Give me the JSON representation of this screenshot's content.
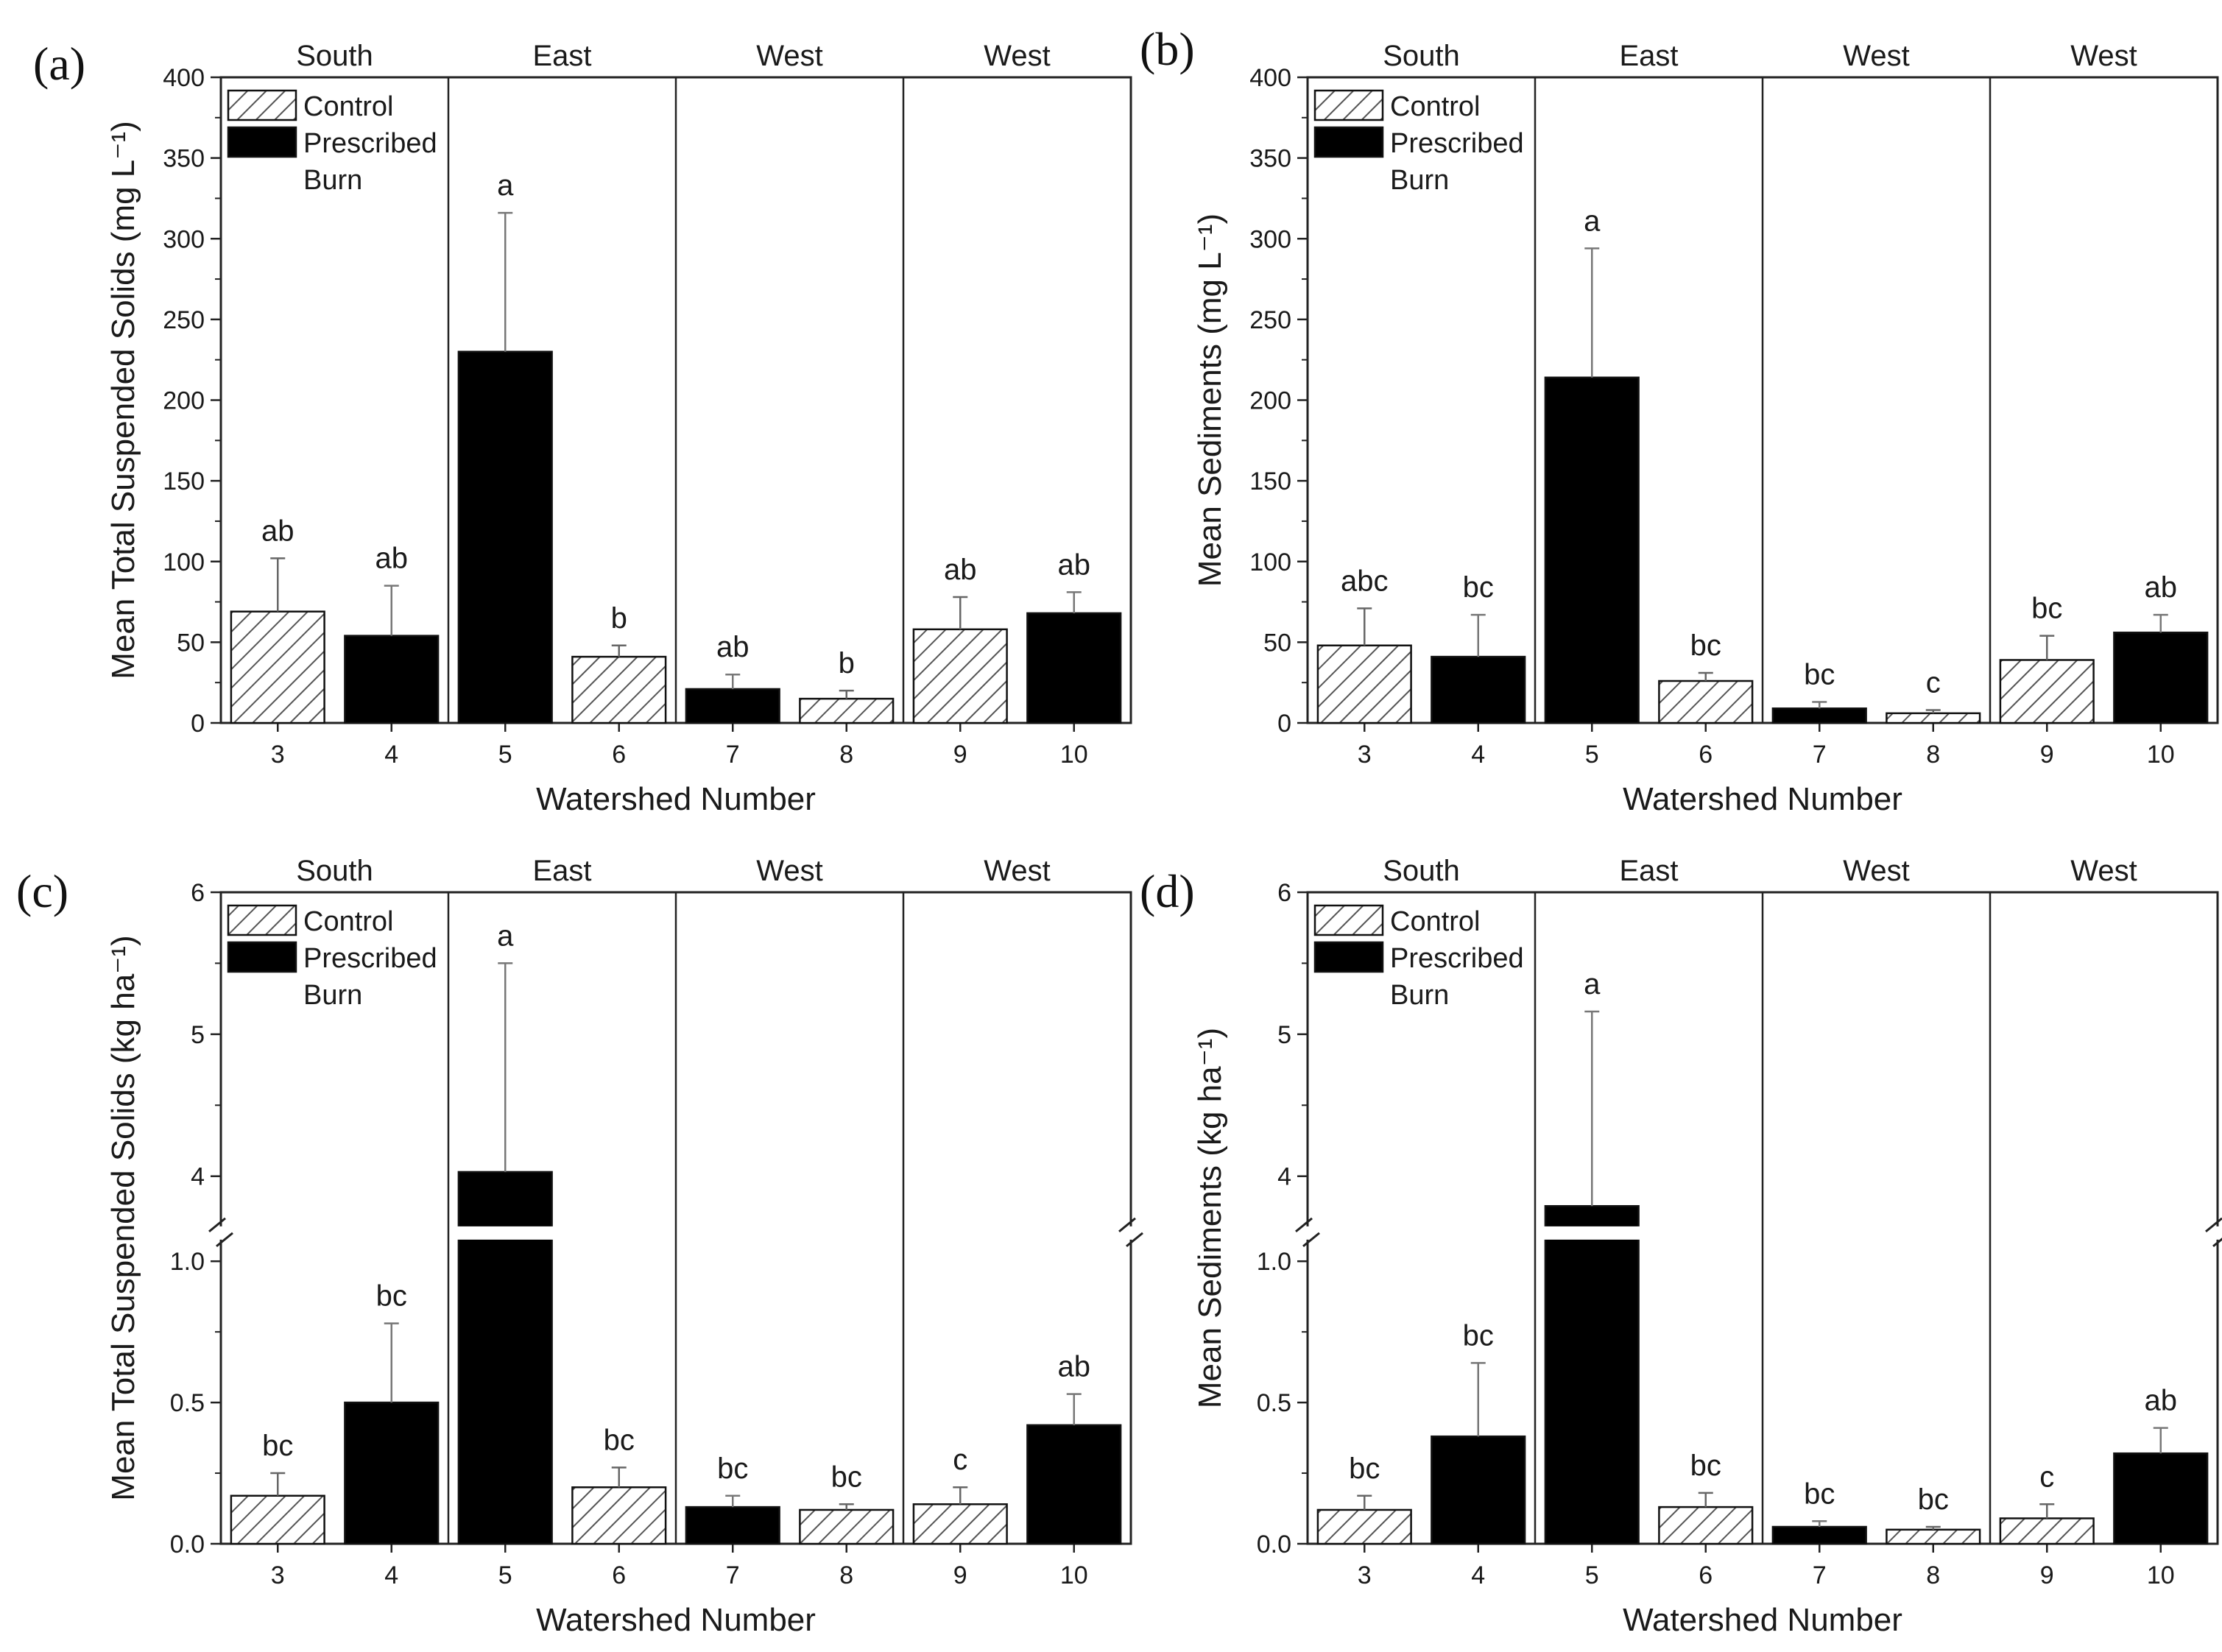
{
  "colors": {
    "burn": "#000000",
    "control_hatch": "#555555",
    "control_fill": "#ffffff",
    "axis": "#222222"
  },
  "legend": {
    "control": "Control",
    "burn_line1": "Prescribed",
    "burn_line2": "Burn"
  },
  "chart_data": [
    {
      "panel": "(a)",
      "type": "bar",
      "title": "",
      "xlabel": "Watershed Number",
      "ylabel": "Mean Total Suspended Solids (mg L⁻¹)",
      "ylim": [
        0,
        400
      ],
      "yticks": [
        "0",
        "50",
        "100",
        "150",
        "200",
        "250",
        "300",
        "350",
        "400"
      ],
      "regions": [
        "South",
        "East",
        "West",
        "West"
      ],
      "categories": [
        "3",
        "4",
        "5",
        "6",
        "7",
        "8",
        "9",
        "10"
      ],
      "treatment": [
        "Control",
        "Prescribed Burn",
        "Prescribed Burn",
        "Control",
        "Prescribed Burn",
        "Control",
        "Control",
        "Prescribed Burn"
      ],
      "values": [
        69,
        54,
        230,
        41,
        21,
        15,
        58,
        68
      ],
      "errors": [
        33,
        31,
        86,
        7,
        9,
        5,
        20,
        13
      ],
      "letters": [
        "ab",
        "ab",
        "a",
        "b",
        "ab",
        "b",
        "ab",
        "ab"
      ],
      "broken_axis": false
    },
    {
      "panel": "(b)",
      "type": "bar",
      "title": "",
      "xlabel": "Watershed Number",
      "ylabel": "Mean Sediments (mg L⁻¹)",
      "ylim": [
        0,
        400
      ],
      "yticks": [
        "0",
        "50",
        "100",
        "150",
        "200",
        "250",
        "300",
        "350",
        "400"
      ],
      "regions": [
        "South",
        "East",
        "West",
        "West"
      ],
      "categories": [
        "3",
        "4",
        "5",
        "6",
        "7",
        "8",
        "9",
        "10"
      ],
      "treatment": [
        "Control",
        "Prescribed Burn",
        "Prescribed Burn",
        "Control",
        "Prescribed Burn",
        "Control",
        "Control",
        "Prescribed Burn"
      ],
      "values": [
        48,
        41,
        214,
        26,
        9,
        6,
        39,
        56
      ],
      "errors": [
        23,
        26,
        80,
        5,
        4,
        2,
        15,
        11
      ],
      "letters": [
        "abc",
        "bc",
        "a",
        "bc",
        "bc",
        "c",
        "bc",
        "ab"
      ],
      "broken_axis": false
    },
    {
      "panel": "(c)",
      "type": "bar",
      "title": "",
      "xlabel": "Watershed Number",
      "ylabel": "Mean Total Suspended Solids (kg ha⁻¹)",
      "ylim": [
        0,
        6
      ],
      "broken_axis": true,
      "break_range": [
        1.1,
        3.6
      ],
      "lower_range": [
        0,
        1.1
      ],
      "upper_range": [
        3.6,
        6
      ],
      "yticks": [
        "0.0",
        "0.5",
        "1.0",
        "4",
        "5",
        "6"
      ],
      "regions": [
        "South",
        "East",
        "West",
        "West"
      ],
      "categories": [
        "3",
        "4",
        "5",
        "6",
        "7",
        "8",
        "9",
        "10"
      ],
      "treatment": [
        "Control",
        "Prescribed Burn",
        "Prescribed Burn",
        "Control",
        "Prescribed Burn",
        "Control",
        "Control",
        "Prescribed Burn"
      ],
      "values": [
        0.17,
        0.5,
        4.03,
        0.2,
        0.13,
        0.12,
        0.14,
        0.42
      ],
      "errors": [
        0.08,
        0.28,
        1.47,
        0.07,
        0.04,
        0.02,
        0.06,
        0.11
      ],
      "letters": [
        "bc",
        "bc",
        "a",
        "bc",
        "bc",
        "bc",
        "c",
        "ab"
      ]
    },
    {
      "panel": "(d)",
      "type": "bar",
      "title": "",
      "xlabel": "Watershed Number",
      "ylabel": "Mean Sediments (kg ha⁻¹)",
      "ylim": [
        0,
        6
      ],
      "broken_axis": true,
      "break_range": [
        1.1,
        3.6
      ],
      "lower_range": [
        0,
        1.1
      ],
      "upper_range": [
        3.6,
        6
      ],
      "yticks": [
        "0.0",
        "0.5",
        "1.0",
        "4",
        "5",
        "6"
      ],
      "regions": [
        "South",
        "East",
        "West",
        "West"
      ],
      "categories": [
        "3",
        "4",
        "5",
        "6",
        "7",
        "8",
        "9",
        "10"
      ],
      "treatment": [
        "Control",
        "Prescribed Burn",
        "Prescribed Burn",
        "Control",
        "Prescribed Burn",
        "Control",
        "Control",
        "Prescribed Burn"
      ],
      "values": [
        0.12,
        0.38,
        3.79,
        0.13,
        0.06,
        0.05,
        0.09,
        0.32
      ],
      "errors": [
        0.05,
        0.26,
        1.37,
        0.05,
        0.02,
        0.01,
        0.05,
        0.09
      ],
      "letters": [
        "bc",
        "bc",
        "a",
        "bc",
        "bc",
        "bc",
        "c",
        "ab"
      ]
    }
  ]
}
